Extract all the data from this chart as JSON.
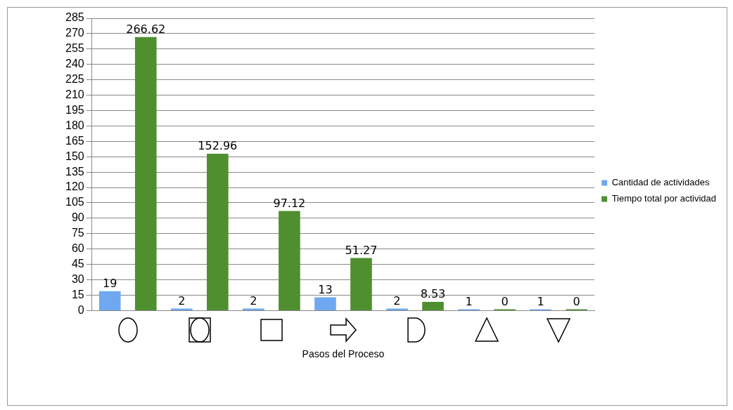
{
  "chart_data": {
    "type": "bar",
    "xlabel": "Pasos del Proceso",
    "categories": [
      null,
      null,
      null,
      null,
      null,
      null,
      null
    ],
    "series": [
      {
        "name": "Cantidad de actividades",
        "color": "#6fa8f0",
        "values": [
          19,
          2,
          2,
          13,
          2,
          1,
          1
        ]
      },
      {
        "name": "Tiempo total por actividad",
        "color": "#4f8f2f",
        "values": [
          266.62,
          152.96,
          97.12,
          51.27,
          8.53,
          0,
          0
        ]
      }
    ],
    "ylim": [
      0,
      285
    ],
    "yticks": [
      0,
      15,
      30,
      45,
      60,
      75,
      90,
      105,
      120,
      135,
      150,
      165,
      180,
      195,
      210,
      225,
      240,
      255,
      270,
      285
    ],
    "grid": "y",
    "legend": "right",
    "data_labels": true
  }
}
